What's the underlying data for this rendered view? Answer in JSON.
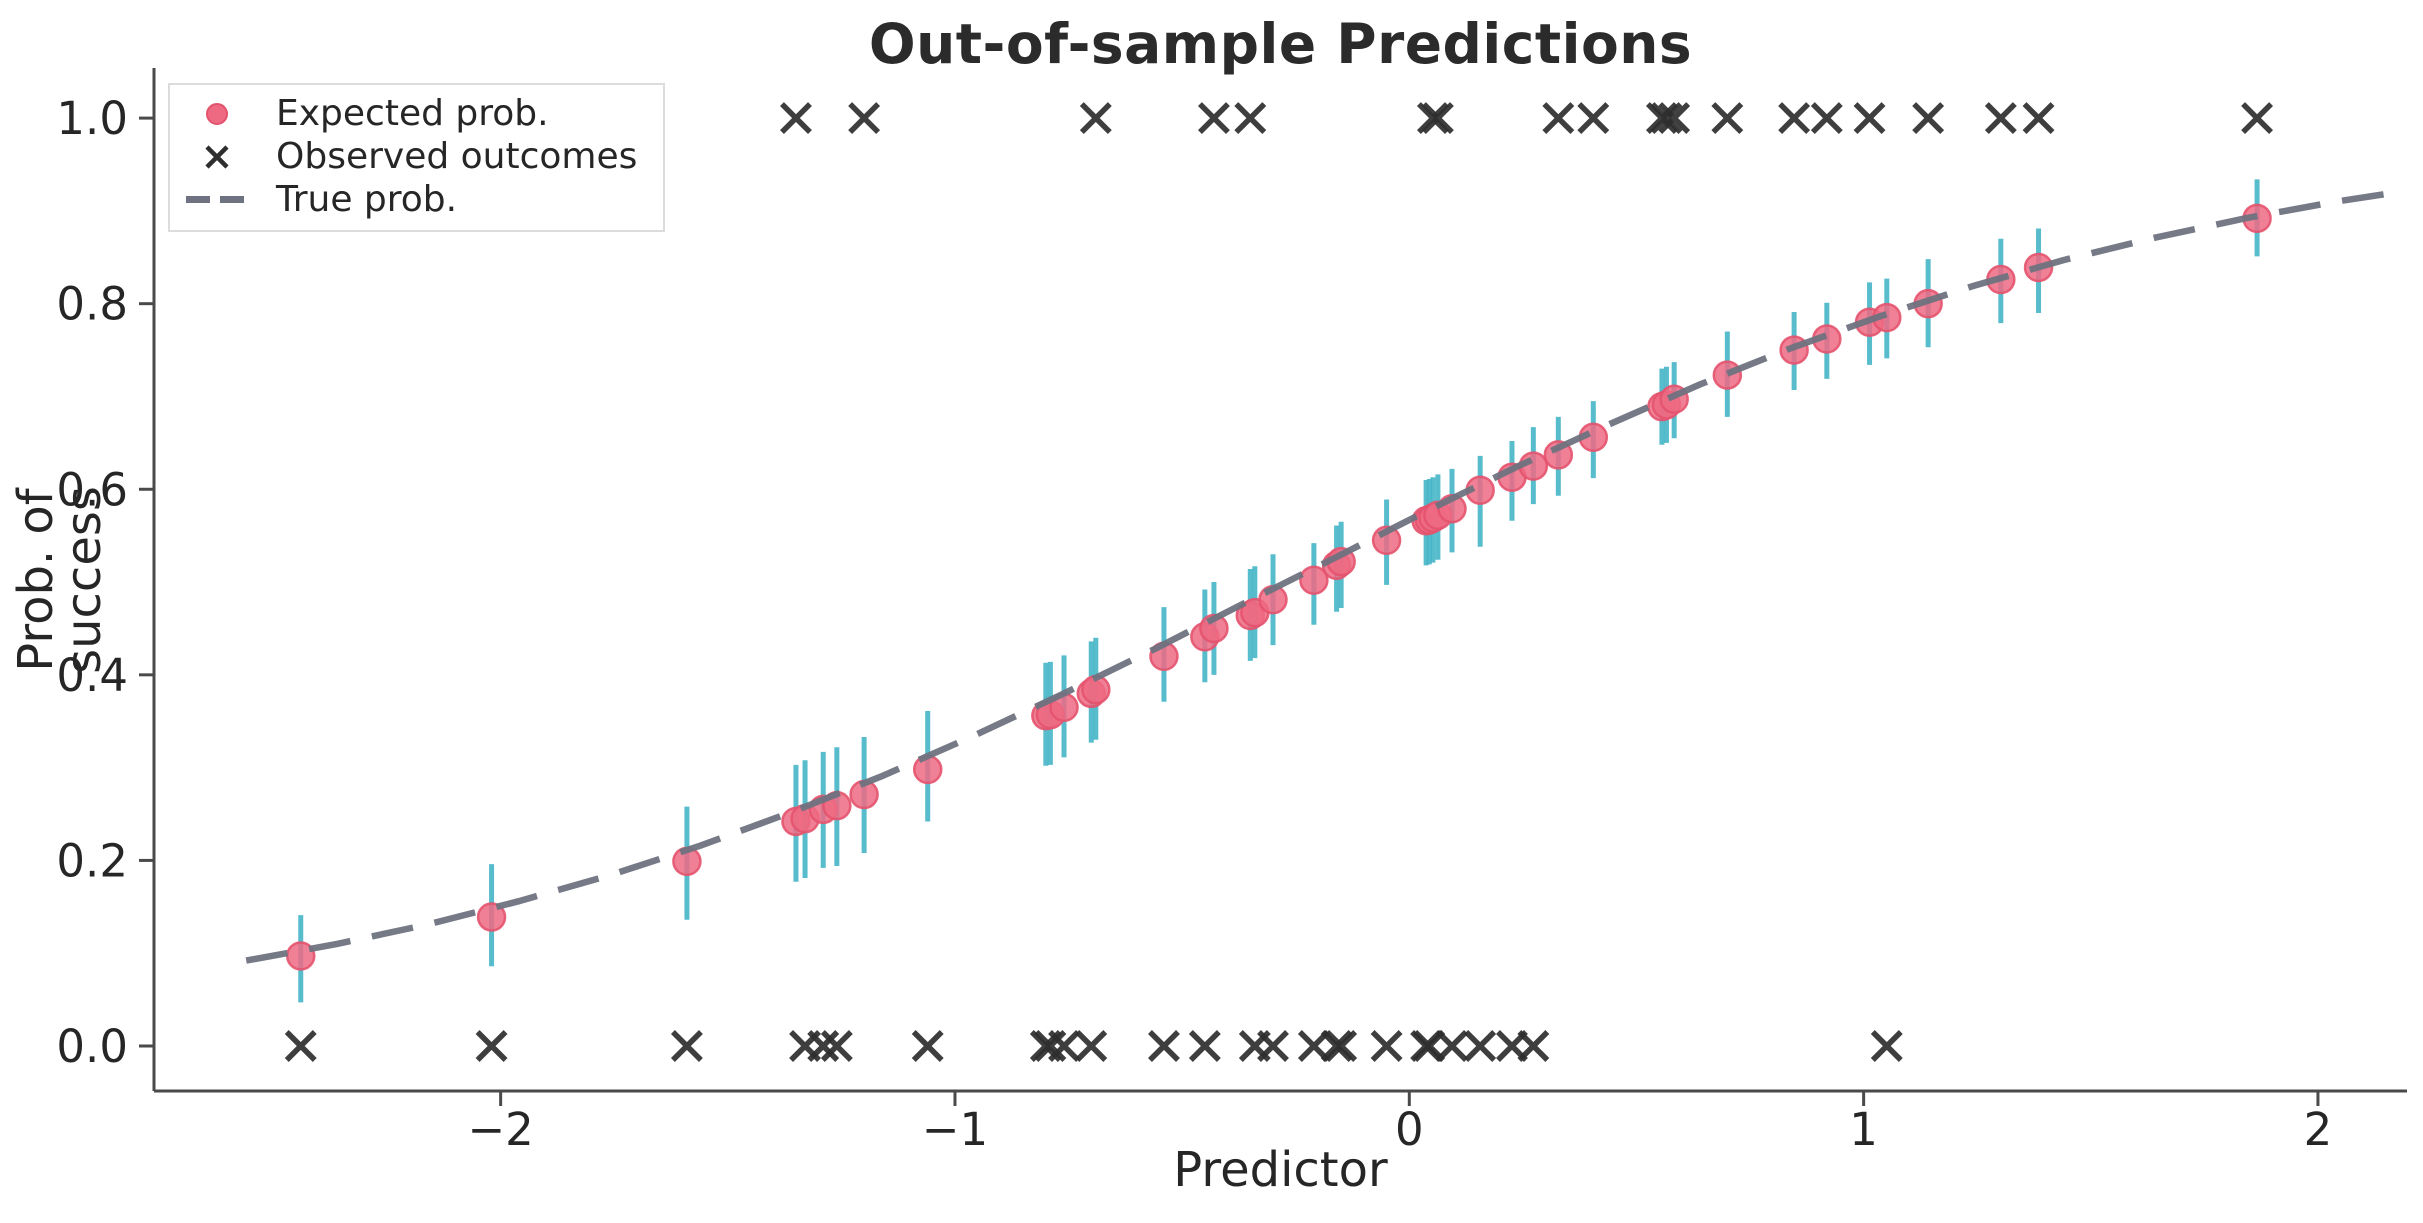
{
  "chart_data": {
    "type": "scatter",
    "title": "Out-of-sample Predictions",
    "xlabel": "Predictor",
    "ylabel": "Prob. of success",
    "xlim": [
      -2.763,
      2.196
    ],
    "ylim": [
      -0.0485,
      1.054
    ],
    "grid": false,
    "legend": {
      "position": "upper left",
      "items": [
        {
          "label": "Expected prob.",
          "marker": "pink-dot"
        },
        {
          "label": "Observed outcomes",
          "marker": "black-x"
        },
        {
          "label": "True prob.",
          "marker": "gray-dashed-line"
        }
      ]
    },
    "xticks": {
      "values": [
        -2,
        -1,
        0,
        1,
        2
      ],
      "labels": [
        "−2",
        "−1",
        "0",
        "1",
        "2"
      ]
    },
    "yticks": {
      "values": [
        0.0,
        0.2,
        0.4,
        0.6,
        0.8,
        1.0
      ],
      "labels": [
        "0.0",
        "0.2",
        "0.4",
        "0.6",
        "0.8",
        "1.0"
      ]
    },
    "series": [
      {
        "name": "Expected prob.",
        "type": "scatter-with-errorbars",
        "point_format": [
          "x",
          "expected_prob",
          "ci_low",
          "ci_high",
          "observed_outcome"
        ],
        "points": [
          [
            -2.44,
            0.097,
            0.047,
            0.141,
            0
          ],
          [
            -2.02,
            0.139,
            0.086,
            0.196,
            0
          ],
          [
            -1.59,
            0.199,
            0.136,
            0.258,
            0
          ],
          [
            -1.35,
            0.242,
            0.177,
            0.303,
            1
          ],
          [
            -1.33,
            0.245,
            0.181,
            0.308,
            0
          ],
          [
            -1.29,
            0.255,
            0.192,
            0.317,
            0
          ],
          [
            -1.26,
            0.259,
            0.194,
            0.322,
            0
          ],
          [
            -1.2,
            0.271,
            0.208,
            0.333,
            1
          ],
          [
            -1.06,
            0.298,
            0.242,
            0.361,
            0
          ],
          [
            -0.8,
            0.356,
            0.302,
            0.413,
            0
          ],
          [
            -0.79,
            0.357,
            0.303,
            0.414,
            0
          ],
          [
            -0.76,
            0.365,
            0.311,
            0.421,
            0
          ],
          [
            -0.7,
            0.38,
            0.327,
            0.436,
            0
          ],
          [
            -0.69,
            0.384,
            0.33,
            0.44,
            1
          ],
          [
            -0.54,
            0.42,
            0.371,
            0.473,
            0
          ],
          [
            -0.45,
            0.441,
            0.392,
            0.492,
            0
          ],
          [
            -0.43,
            0.45,
            0.4,
            0.5,
            1
          ],
          [
            -0.35,
            0.464,
            0.415,
            0.514,
            1
          ],
          [
            -0.34,
            0.467,
            0.418,
            0.517,
            0
          ],
          [
            -0.3,
            0.481,
            0.432,
            0.53,
            0
          ],
          [
            -0.21,
            0.502,
            0.454,
            0.542,
            0
          ],
          [
            -0.16,
            0.518,
            0.468,
            0.561,
            0
          ],
          [
            -0.15,
            0.522,
            0.472,
            0.565,
            0
          ],
          [
            -0.05,
            0.545,
            0.497,
            0.589,
            0
          ],
          [
            0.037,
            0.566,
            0.518,
            0.61,
            0
          ],
          [
            0.044,
            0.567,
            0.519,
            0.611,
            0
          ],
          [
            0.052,
            0.569,
            0.521,
            0.613,
            1
          ],
          [
            0.063,
            0.572,
            0.524,
            0.616,
            1
          ],
          [
            0.094,
            0.579,
            0.532,
            0.622,
            0
          ],
          [
            0.156,
            0.599,
            0.538,
            0.636,
            0
          ],
          [
            0.226,
            0.613,
            0.566,
            0.652,
            0
          ],
          [
            0.273,
            0.625,
            0.584,
            0.667,
            0
          ],
          [
            0.328,
            0.637,
            0.593,
            0.678,
            1
          ],
          [
            0.405,
            0.656,
            0.612,
            0.695,
            1
          ],
          [
            0.556,
            0.689,
            0.648,
            0.73,
            1
          ],
          [
            0.566,
            0.691,
            0.65,
            0.732,
            1
          ],
          [
            0.583,
            0.697,
            0.655,
            0.737,
            1
          ],
          [
            0.7,
            0.723,
            0.678,
            0.77,
            1
          ],
          [
            0.847,
            0.75,
            0.707,
            0.791,
            1
          ],
          [
            0.919,
            0.762,
            0.719,
            0.801,
            1
          ],
          [
            1.013,
            0.78,
            0.734,
            0.823,
            1
          ],
          [
            1.051,
            0.785,
            0.741,
            0.827,
            0
          ],
          [
            1.142,
            0.8,
            0.753,
            0.848,
            1
          ],
          [
            1.302,
            0.826,
            0.779,
            0.87,
            1
          ],
          [
            1.385,
            0.839,
            0.79,
            0.881,
            1
          ],
          [
            1.866,
            0.892,
            0.851,
            0.934,
            1
          ]
        ]
      },
      {
        "name": "Observed outcomes",
        "type": "scatter-x-marks",
        "note": "binary outcomes plotted at y=0 or y=1, x taken from points above"
      },
      {
        "name": "True prob.",
        "type": "dashed-line",
        "x": [
          -2.56,
          -2.36,
          -2.16,
          -1.96,
          -1.76,
          -1.56,
          -1.36,
          -1.16,
          -0.96,
          -0.76,
          -0.56,
          -0.36,
          -0.16,
          0.04,
          0.24,
          0.44,
          0.64,
          0.84,
          1.04,
          1.24,
          1.44,
          1.64,
          1.84,
          2.04,
          2.16
        ],
        "p": [
          0.092,
          0.11,
          0.131,
          0.156,
          0.184,
          0.216,
          0.252,
          0.291,
          0.334,
          0.38,
          0.428,
          0.478,
          0.527,
          0.577,
          0.625,
          0.67,
          0.713,
          0.752,
          0.787,
          0.819,
          0.847,
          0.871,
          0.892,
          0.91,
          0.919
        ]
      }
    ],
    "colors": {
      "dot_fill": "#ed6a82",
      "dot_edge": "#e4536e",
      "errorbar": "#45b5c6",
      "curve": "#6f7280",
      "x_marks": "#2e2e2e",
      "spine": "#4a4a4a",
      "tick_text": "#262626",
      "legend_border": "#dcdcdc"
    }
  }
}
